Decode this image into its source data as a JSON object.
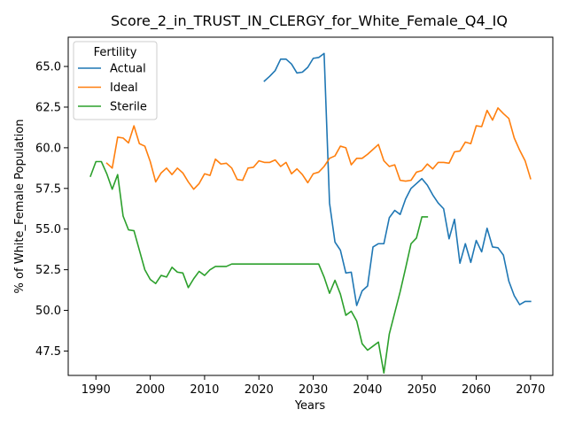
{
  "chart_data": {
    "type": "line",
    "title": "Score_2_in_TRUST_IN_CLERGY_for_White_Female_Q4_IQ",
    "xlabel": "Years",
    "ylabel": "% of White_Female Population",
    "xlim": [
      1984.9,
      2074.1
    ],
    "ylim": [
      46.0,
      66.8
    ],
    "xticks": [
      1990,
      2000,
      2010,
      2020,
      2030,
      2040,
      2050,
      2060,
      2070
    ],
    "yticks": [
      47.5,
      50.0,
      52.5,
      55.0,
      57.5,
      60.0,
      62.5,
      65.0
    ],
    "grid": false,
    "legend": {
      "title": "Fertility",
      "placement": "upper-left"
    },
    "series": [
      {
        "name": "Actual",
        "color": "#1f77b4",
        "points": [
          [
            2021,
            64.1
          ],
          [
            2022,
            64.4
          ],
          [
            2023,
            64.75
          ],
          [
            2024,
            65.45
          ],
          [
            2025,
            65.45
          ],
          [
            2026,
            65.15
          ],
          [
            2027,
            64.6
          ],
          [
            2028,
            64.65
          ],
          [
            2029,
            64.95
          ],
          [
            2030,
            65.5
          ],
          [
            2031,
            65.55
          ],
          [
            2032,
            65.8
          ],
          [
            2033,
            56.6
          ],
          [
            2034,
            54.2
          ],
          [
            2035,
            53.7
          ],
          [
            2036,
            52.3
          ],
          [
            2037,
            52.35
          ],
          [
            2038,
            50.3
          ],
          [
            2039,
            51.2
          ],
          [
            2040,
            51.5
          ],
          [
            2041,
            53.9
          ],
          [
            2042,
            54.1
          ],
          [
            2043,
            54.1
          ],
          [
            2044,
            55.7
          ],
          [
            2045,
            56.15
          ],
          [
            2046,
            55.9
          ],
          [
            2047,
            56.85
          ],
          [
            2048,
            57.5
          ],
          [
            2049,
            57.8
          ],
          [
            2050,
            58.1
          ],
          [
            2051,
            57.7
          ],
          [
            2052,
            57.1
          ],
          [
            2053,
            56.6
          ],
          [
            2054,
            56.25
          ],
          [
            2055,
            54.4
          ],
          [
            2056,
            55.6
          ],
          [
            2057,
            52.9
          ],
          [
            2058,
            54.1
          ],
          [
            2059,
            52.95
          ],
          [
            2060,
            54.3
          ],
          [
            2061,
            53.6
          ],
          [
            2062,
            55.05
          ],
          [
            2063,
            53.9
          ],
          [
            2064,
            53.85
          ],
          [
            2065,
            53.4
          ],
          [
            2066,
            51.8
          ],
          [
            2067,
            50.9
          ],
          [
            2068,
            50.35
          ],
          [
            2069,
            50.55
          ],
          [
            2070,
            50.55
          ]
        ]
      },
      {
        "name": "Ideal",
        "color": "#ff7f0e",
        "points": [
          [
            1992,
            59.05
          ],
          [
            1993,
            58.75
          ],
          [
            1994,
            60.65
          ],
          [
            1995,
            60.6
          ],
          [
            1996,
            60.3
          ],
          [
            1997,
            61.35
          ],
          [
            1998,
            60.25
          ],
          [
            1999,
            60.1
          ],
          [
            2000,
            59.15
          ],
          [
            2001,
            57.9
          ],
          [
            2002,
            58.45
          ],
          [
            2003,
            58.75
          ],
          [
            2004,
            58.35
          ],
          [
            2005,
            58.75
          ],
          [
            2006,
            58.45
          ],
          [
            2007,
            57.9
          ],
          [
            2008,
            57.45
          ],
          [
            2009,
            57.8
          ],
          [
            2010,
            58.4
          ],
          [
            2011,
            58.3
          ],
          [
            2012,
            59.3
          ],
          [
            2013,
            59.0
          ],
          [
            2014,
            59.05
          ],
          [
            2015,
            58.75
          ],
          [
            2016,
            58.05
          ],
          [
            2017,
            58.0
          ],
          [
            2018,
            58.75
          ],
          [
            2019,
            58.8
          ],
          [
            2020,
            59.2
          ],
          [
            2021,
            59.1
          ],
          [
            2022,
            59.1
          ],
          [
            2023,
            59.25
          ],
          [
            2024,
            58.85
          ],
          [
            2025,
            59.1
          ],
          [
            2026,
            58.4
          ],
          [
            2027,
            58.7
          ],
          [
            2028,
            58.35
          ],
          [
            2029,
            57.85
          ],
          [
            2030,
            58.4
          ],
          [
            2031,
            58.5
          ],
          [
            2032,
            58.85
          ],
          [
            2033,
            59.35
          ],
          [
            2034,
            59.5
          ],
          [
            2035,
            60.1
          ],
          [
            2036,
            60.0
          ],
          [
            2037,
            58.95
          ],
          [
            2038,
            59.35
          ],
          [
            2039,
            59.35
          ],
          [
            2040,
            59.6
          ],
          [
            2041,
            59.9
          ],
          [
            2042,
            60.2
          ],
          [
            2043,
            59.2
          ],
          [
            2044,
            58.85
          ],
          [
            2045,
            58.95
          ],
          [
            2046,
            58.0
          ],
          [
            2047,
            57.95
          ],
          [
            2048,
            58.0
          ],
          [
            2049,
            58.5
          ],
          [
            2050,
            58.6
          ],
          [
            2051,
            59.0
          ],
          [
            2052,
            58.7
          ],
          [
            2053,
            59.1
          ],
          [
            2054,
            59.1
          ],
          [
            2055,
            59.05
          ],
          [
            2056,
            59.75
          ],
          [
            2057,
            59.8
          ],
          [
            2058,
            60.35
          ],
          [
            2059,
            60.25
          ],
          [
            2060,
            61.35
          ],
          [
            2061,
            61.3
          ],
          [
            2062,
            62.3
          ],
          [
            2063,
            61.7
          ],
          [
            2064,
            62.45
          ],
          [
            2065,
            62.1
          ],
          [
            2066,
            61.8
          ],
          [
            2067,
            60.6
          ],
          [
            2068,
            59.85
          ],
          [
            2069,
            59.2
          ],
          [
            2070,
            58.1
          ]
        ]
      },
      {
        "name": "Sterile",
        "color": "#2ca02c",
        "points": [
          [
            1989,
            58.25
          ],
          [
            1990,
            59.15
          ],
          [
            1991,
            59.15
          ],
          [
            1992,
            58.4
          ],
          [
            1993,
            57.45
          ],
          [
            1994,
            58.35
          ],
          [
            1995,
            55.8
          ],
          [
            1996,
            54.95
          ],
          [
            1997,
            54.9
          ],
          [
            1998,
            53.7
          ],
          [
            1999,
            52.5
          ],
          [
            2000,
            51.9
          ],
          [
            2001,
            51.65
          ],
          [
            2002,
            52.15
          ],
          [
            2003,
            52.05
          ],
          [
            2004,
            52.65
          ],
          [
            2005,
            52.35
          ],
          [
            2006,
            52.3
          ],
          [
            2007,
            51.4
          ],
          [
            2008,
            51.95
          ],
          [
            2009,
            52.4
          ],
          [
            2010,
            52.15
          ],
          [
            2011,
            52.5
          ],
          [
            2012,
            52.7
          ],
          [
            2013,
            52.7
          ],
          [
            2014,
            52.7
          ],
          [
            2015,
            52.85
          ],
          [
            2016,
            52.85
          ],
          [
            2017,
            52.85
          ],
          [
            2018,
            52.85
          ],
          [
            2019,
            52.85
          ],
          [
            2020,
            52.85
          ],
          [
            2021,
            52.85
          ],
          [
            2022,
            52.85
          ],
          [
            2023,
            52.85
          ],
          [
            2024,
            52.85
          ],
          [
            2025,
            52.85
          ],
          [
            2026,
            52.85
          ],
          [
            2027,
            52.85
          ],
          [
            2028,
            52.85
          ],
          [
            2029,
            52.85
          ],
          [
            2030,
            52.85
          ],
          [
            2031,
            52.85
          ],
          [
            2032,
            52.05
          ],
          [
            2033,
            51.05
          ],
          [
            2034,
            51.85
          ],
          [
            2035,
            51.0
          ],
          [
            2036,
            49.7
          ],
          [
            2037,
            49.95
          ],
          [
            2038,
            49.35
          ],
          [
            2039,
            47.95
          ],
          [
            2040,
            47.55
          ],
          [
            2041,
            47.8
          ],
          [
            2042,
            48.05
          ],
          [
            2043,
            46.15
          ],
          [
            2044,
            48.55
          ],
          [
            2045,
            49.85
          ],
          [
            2046,
            51.15
          ],
          [
            2047,
            52.6
          ],
          [
            2048,
            54.1
          ],
          [
            2049,
            54.45
          ],
          [
            2050,
            55.75
          ],
          [
            2051,
            55.75
          ]
        ]
      }
    ]
  }
}
